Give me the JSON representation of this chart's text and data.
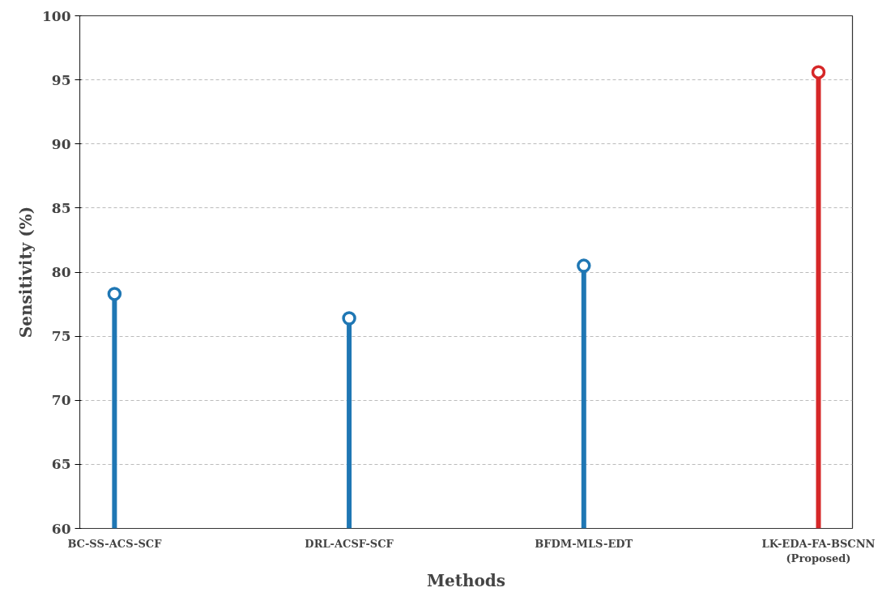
{
  "chart_data": {
    "type": "lollipop",
    "xlabel": "Methods",
    "ylabel": "Sensitivity (%)",
    "categories": [
      "BC-SS-ACS-SCF",
      "DRL-ACSF-SCF",
      "BFDM-MLS-EDT",
      "LK-EDA-FA-BSCNN\n(Proposed)"
    ],
    "values": [
      78.3,
      76.4,
      80.5,
      95.6
    ],
    "colors": [
      "#1f77b4",
      "#1f77b4",
      "#1f77b4",
      "#d62728"
    ],
    "ylim": [
      60,
      100
    ],
    "yticks": [
      60,
      65,
      70,
      75,
      80,
      85,
      90,
      95,
      100
    ],
    "grid": "y",
    "marker": "circle"
  }
}
